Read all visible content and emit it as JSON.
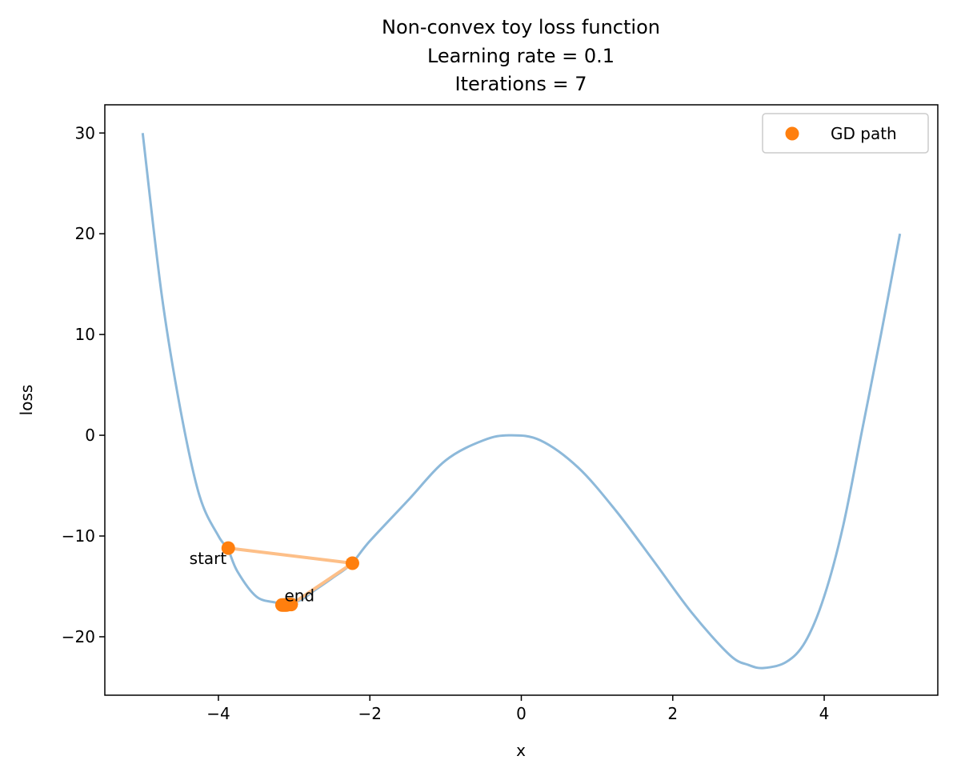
{
  "chart_data": {
    "type": "line",
    "title": "Non-convex toy loss function",
    "subtitle_lines": [
      "Learning rate = 0.1",
      "Iterations = 7"
    ],
    "xlabel": "x",
    "ylabel": "loss",
    "xlim": [
      -5.5,
      5.5
    ],
    "ylim": [
      -25.8,
      32.8
    ],
    "xticks": [
      -4,
      -2,
      0,
      2,
      4
    ],
    "yticks": [
      -20,
      -10,
      0,
      10,
      20,
      30
    ],
    "xtick_labels": [
      "−4",
      "−2",
      "0",
      "2",
      "4"
    ],
    "ytick_labels": [
      "−20",
      "−10",
      "0",
      "10",
      "20",
      "30"
    ],
    "curve": {
      "color": "#8db9da",
      "x": [
        -5.0,
        -4.75,
        -4.5,
        -4.25,
        -4.0,
        -3.875,
        -3.75,
        -3.5,
        -3.25,
        -3.1,
        -2.9,
        -2.75,
        -2.5,
        -2.25,
        -2.0,
        -1.5,
        -1.0,
        -0.5,
        -0.15,
        0.25,
        0.75,
        1.25,
        1.75,
        2.25,
        2.75,
        3.0,
        3.2,
        3.5,
        3.75,
        4.0,
        4.25,
        4.5,
        4.75,
        5.0
      ],
      "y": [
        30.0,
        14.0,
        2.5,
        -6.0,
        -10.0,
        -11.3,
        -13.5,
        -16.0,
        -16.6,
        -16.8,
        -16.3,
        -15.5,
        -14.2,
        -12.8,
        -10.5,
        -6.5,
        -2.5,
        -0.5,
        0.0,
        -0.5,
        -3.2,
        -7.5,
        -12.5,
        -17.6,
        -21.8,
        -22.8,
        -23.1,
        -22.5,
        -20.5,
        -16.0,
        -9.0,
        0.5,
        10.0,
        20.0
      ]
    },
    "gd_path": {
      "name": "GD path",
      "color": "#ff7f0e",
      "x": [
        -3.87,
        -2.23,
        -3.04,
        -3.07,
        -3.1,
        -3.12,
        -3.14,
        -3.16
      ],
      "y": [
        -11.2,
        -12.7,
        -16.8,
        -16.8,
        -16.85,
        -16.85,
        -16.85,
        -16.85
      ]
    },
    "arrow_color": "#fdbf88",
    "annotations": [
      "start",
      "end"
    ],
    "legend": {
      "position": "top-right",
      "label": "GD path"
    },
    "grid": false
  }
}
